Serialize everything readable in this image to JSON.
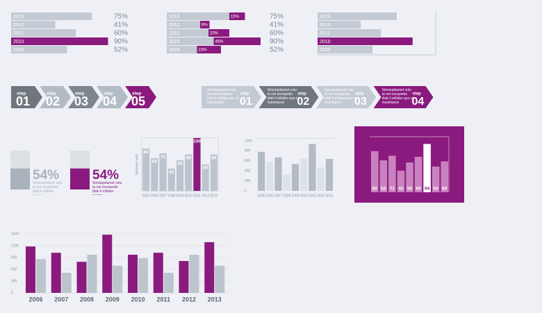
{
  "chart_data": [
    {
      "type": "hbar",
      "categories": [
        "2013",
        "2012",
        "2011",
        "2010",
        "2009"
      ],
      "values": [
        75,
        41,
        60,
        90,
        52
      ],
      "value_labels": [
        "75%",
        "41%",
        "60%",
        "90%",
        "52%"
      ],
      "colors": [
        "#c3cad3",
        "#c3cad3",
        "#c3cad3",
        "#8b1a7e",
        "#c3cad3"
      ],
      "xlim": [
        0,
        100
      ]
    },
    {
      "type": "hbar_overlay",
      "categories": [
        "2013",
        "2012",
        "2011",
        "2010",
        "2009"
      ],
      "xlim": [
        0,
        100
      ],
      "series": [
        {
          "values": [
            75,
            41,
            60,
            90,
            52
          ],
          "value_labels": [
            "75%",
            "41%",
            "60%",
            "90%",
            "52%"
          ],
          "color": "#c3cad3"
        },
        {
          "values": [
            15,
            9,
            20,
            45,
            23
          ],
          "value_labels": [
            "15%",
            "9%",
            "20%",
            "45%",
            "23%"
          ],
          "color": "#8b1a7e"
        }
      ]
    },
    {
      "type": "hbar",
      "categories": [
        "2013",
        "2012",
        "2011",
        "2010",
        "2009"
      ],
      "values": [
        75,
        41,
        60,
        90,
        52
      ],
      "colors": [
        "#c3cad3",
        "#c3cad3",
        "#c3cad3",
        "#8b1a7e",
        "#c3cad3"
      ],
      "xlim": [
        0,
        100
      ],
      "frame": true
    },
    {
      "type": "gauge",
      "value": 54,
      "value_label": "54%",
      "text": "Simoluptiamet volu ta net excepedio blab il millabo quatur",
      "color": "#a9b1ba",
      "track_color": "#dde1e6"
    },
    {
      "type": "gauge",
      "value": 54,
      "value_label": "54%",
      "text": "Simoluptiamet volu ta net excepedio blab il millabo quatur",
      "color": "#8b1a7e",
      "track_color": "#dde1e6"
    },
    {
      "type": "column",
      "y_label": "Volumes sells",
      "categories": [
        "2005",
        "2006",
        "2007",
        "2008",
        "2009",
        "2010",
        "2011",
        "2012",
        "2013"
      ],
      "values": [
        80,
        62,
        71,
        42,
        58,
        69,
        100,
        50,
        69
      ],
      "colors": [
        "#bcc4cd",
        "#bcc4cd",
        "#bcc4cd",
        "#bcc4cd",
        "#bcc4cd",
        "#bcc4cd",
        "#8b1a7e",
        "#bcc4cd",
        "#bcc4cd"
      ],
      "ylim": [
        0,
        100
      ],
      "value_position": "top",
      "value_color": "#ffffff"
    },
    {
      "type": "column",
      "categories": [
        "2005",
        "2006",
        "2007",
        "2008",
        "2009",
        "2010",
        "2011",
        "2012",
        "2013"
      ],
      "values": [
        780,
        580,
        670,
        330,
        540,
        640,
        940,
        470,
        640
      ],
      "colors": [
        "#b3bbc5",
        "#dde2e8",
        "#b3bbc5",
        "#dde2e8",
        "#b3bbc5",
        "#dde2e8",
        "#b3bbc5",
        "#dde2e8",
        "#b3bbc5"
      ],
      "ylim": [
        0,
        1000
      ],
      "yticks": [
        0,
        200,
        400,
        600,
        800,
        1000
      ]
    },
    {
      "type": "column",
      "values": [
        80,
        62,
        71,
        42,
        58,
        69,
        94,
        50,
        60
      ],
      "colors": [
        "#c982bf",
        "#c982bf",
        "#c982bf",
        "#c982bf",
        "#c982bf",
        "#c982bf",
        "#ffffff",
        "#c982bf",
        "#c982bf"
      ],
      "ylim": [
        0,
        100
      ],
      "value_position": "bottom",
      "value_color": "#ffffff",
      "background": "#8b1a7e"
    },
    {
      "type": "grouped",
      "categories": [
        "2006",
        "2007",
        "2008",
        "2009",
        "2010",
        "2011",
        "2012",
        "2013"
      ],
      "series": [
        {
          "color": "#8b1a7e",
          "values": [
            1180,
            1020,
            790,
            1480,
            970,
            1020,
            810,
            1290
          ]
        },
        {
          "color": "#bcc4cd",
          "values": [
            860,
            510,
            970,
            690,
            880,
            510,
            970,
            690
          ]
        }
      ],
      "ylim": [
        0,
        1500
      ],
      "yticks": [
        0,
        300,
        600,
        900,
        1200,
        1500
      ],
      "grid": true
    }
  ],
  "steps": [
    {
      "label": "step",
      "number": "01",
      "color": "#6f767e"
    },
    {
      "label": "step",
      "number": "02",
      "color": "#b3bbc5"
    },
    {
      "label": "step",
      "number": "03",
      "color": "#7d858e"
    },
    {
      "label": "step",
      "number": "04",
      "color": "#b3bbc5"
    },
    {
      "label": "step",
      "number": "05",
      "color": "#8b1a7e"
    }
  ],
  "step_notes": [
    {
      "text": "Simoluptiamet volu ta net excepedio blab il millabo quo ut maximpore",
      "label": "step",
      "number": "01",
      "color": "#c3cad3"
    },
    {
      "text": "Simoluptiamet volu ta net excepedio blab il millabo quo ut maximpore",
      "label": "step",
      "number": "02",
      "color": "#6f767e"
    },
    {
      "text": "Simoluptiamet volu ta net excepedio blab il millabo quo ut maximpore",
      "label": "step",
      "number": "03",
      "color": "#c3cad3"
    },
    {
      "text": "Simoluptiamet volu ta net excepedio blab il millabo quo ut maximpore",
      "label": "step",
      "number": "04",
      "color": "#8b1a7e"
    }
  ]
}
